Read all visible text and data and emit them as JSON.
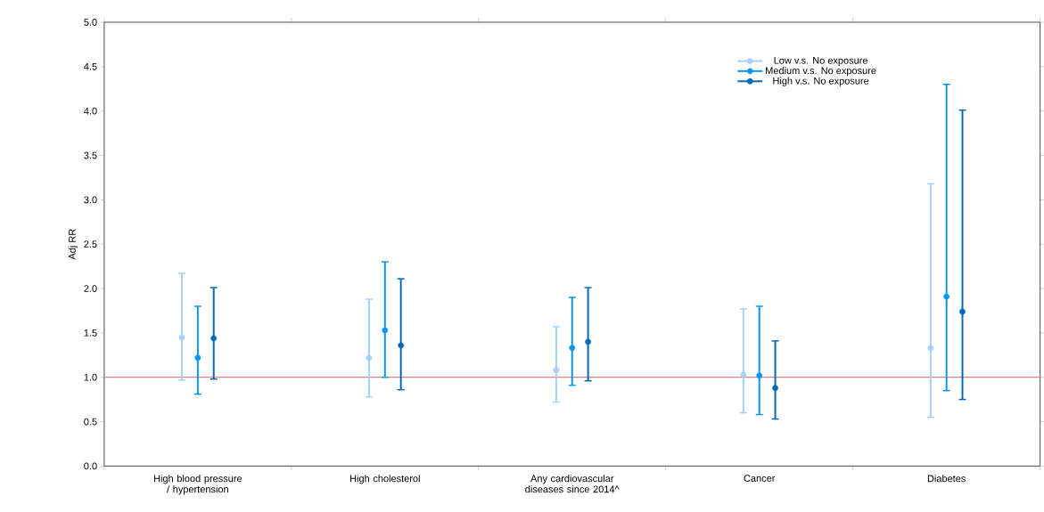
{
  "chart_data": {
    "type": "scatter",
    "ylabel": "Adj RR",
    "categories": [
      "High blood pressure / hypertension",
      "High cholesterol",
      "Any cardiovascular diseases since 2014^",
      "Cancer",
      "Diabetes"
    ],
    "ylim": [
      0,
      5
    ],
    "yticks": [
      {
        "value": 0,
        "label": "0.0"
      },
      {
        "value": 0.5,
        "label": "0.5"
      },
      {
        "value": 1,
        "label": "1.0"
      },
      {
        "value": 1.5,
        "label": "1.5"
      },
      {
        "value": 2,
        "label": "2.0"
      },
      {
        "value": 2.5,
        "label": "2.5"
      },
      {
        "value": 3,
        "label": "3.0"
      },
      {
        "value": 3.5,
        "label": "3.5"
      },
      {
        "value": 4,
        "label": "4.0"
      },
      {
        "value": 4.5,
        "label": "4.5"
      },
      {
        "value": 5,
        "label": "5.0"
      }
    ],
    "series": [
      {
        "name": "Low v.s. No exposure",
        "color": "#a6d0fa",
        "values": [
          1.45,
          1.22,
          1.08,
          1.03,
          1.33
        ],
        "errors": [
          [
            0.97,
            2.17
          ],
          [
            0.78,
            1.88
          ],
          [
            0.72,
            1.57
          ],
          [
            0.6,
            1.77
          ],
          [
            0.55,
            3.18
          ]
        ]
      },
      {
        "name": "Medium v.s. No exposure",
        "color": "#0a96f0",
        "values": [
          1.22,
          1.53,
          1.33,
          1.02,
          1.91
        ],
        "errors": [
          [
            0.81,
            1.8
          ],
          [
            1.0,
            2.3
          ],
          [
            0.91,
            1.9
          ],
          [
            0.58,
            1.8
          ],
          [
            0.85,
            4.3
          ]
        ]
      },
      {
        "name": "High v.s. No exposure",
        "color": "#0868b4",
        "values": [
          1.44,
          1.36,
          1.4,
          0.88,
          1.74
        ],
        "errors": [
          [
            0.98,
            2.01
          ],
          [
            0.86,
            2.11
          ],
          [
            0.96,
            2.01
          ],
          [
            0.53,
            1.41
          ],
          [
            0.75,
            4.01
          ]
        ]
      }
    ],
    "ref_lines": [
      {
        "axis": "y",
        "value": 1,
        "color": "#e08080"
      }
    ],
    "marker": "circle",
    "legend": "top right",
    "grid": false
  }
}
